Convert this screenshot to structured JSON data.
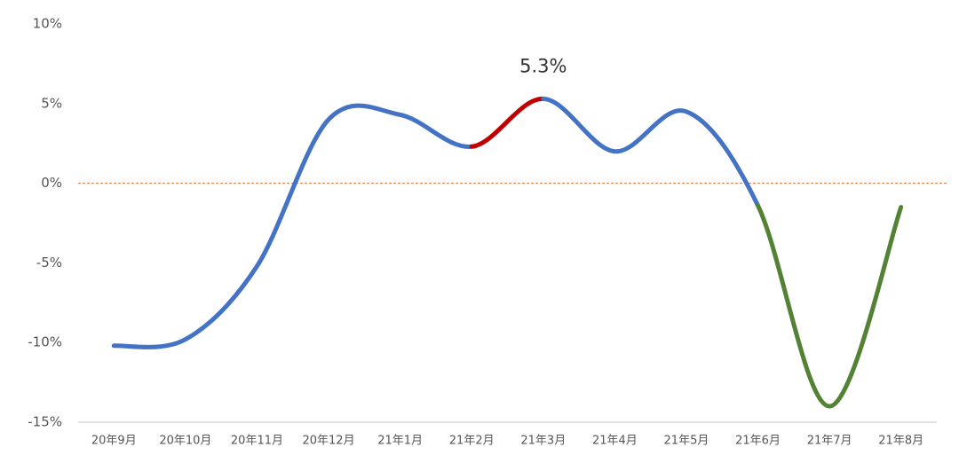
{
  "chart_data": {
    "type": "line",
    "categories": [
      "20年9月",
      "20年10月",
      "20年11月",
      "20年12月",
      "21年1月",
      "21年2月",
      "21年3月",
      "21年4月",
      "21年5月",
      "21年6月",
      "21年7月",
      "21年8月"
    ],
    "series": [
      {
        "values": [
          -10.2,
          -9.8,
          -5.2,
          4.0,
          4.3,
          2.3,
          5.3,
          2.0,
          4.5,
          -1.4,
          -14.0,
          -1.5
        ],
        "value_labels": [
          null,
          null,
          null,
          null,
          null,
          null,
          "5.3%",
          null,
          null,
          null,
          null,
          null
        ],
        "segment_colors": [
          "#4472c4",
          "#4472c4",
          "#4472c4",
          "#4472c4",
          "#4472c4",
          "#c00000",
          "#4472c4",
          "#4472c4",
          "#4472c4",
          "#548235",
          "#548235"
        ]
      }
    ],
    "ylim": [
      -15,
      10
    ],
    "yticks": [
      {
        "value": -15,
        "label": "-15%"
      },
      {
        "value": -10,
        "label": "-10%"
      },
      {
        "value": -5,
        "label": "-5%"
      },
      {
        "value": 0,
        "label": "0%"
      },
      {
        "value": 5,
        "label": "5%"
      },
      {
        "value": 10,
        "label": "10%"
      }
    ],
    "reference_line": {
      "value": 0,
      "color": "#e8703a",
      "dashed": true
    },
    "grid": false
  }
}
